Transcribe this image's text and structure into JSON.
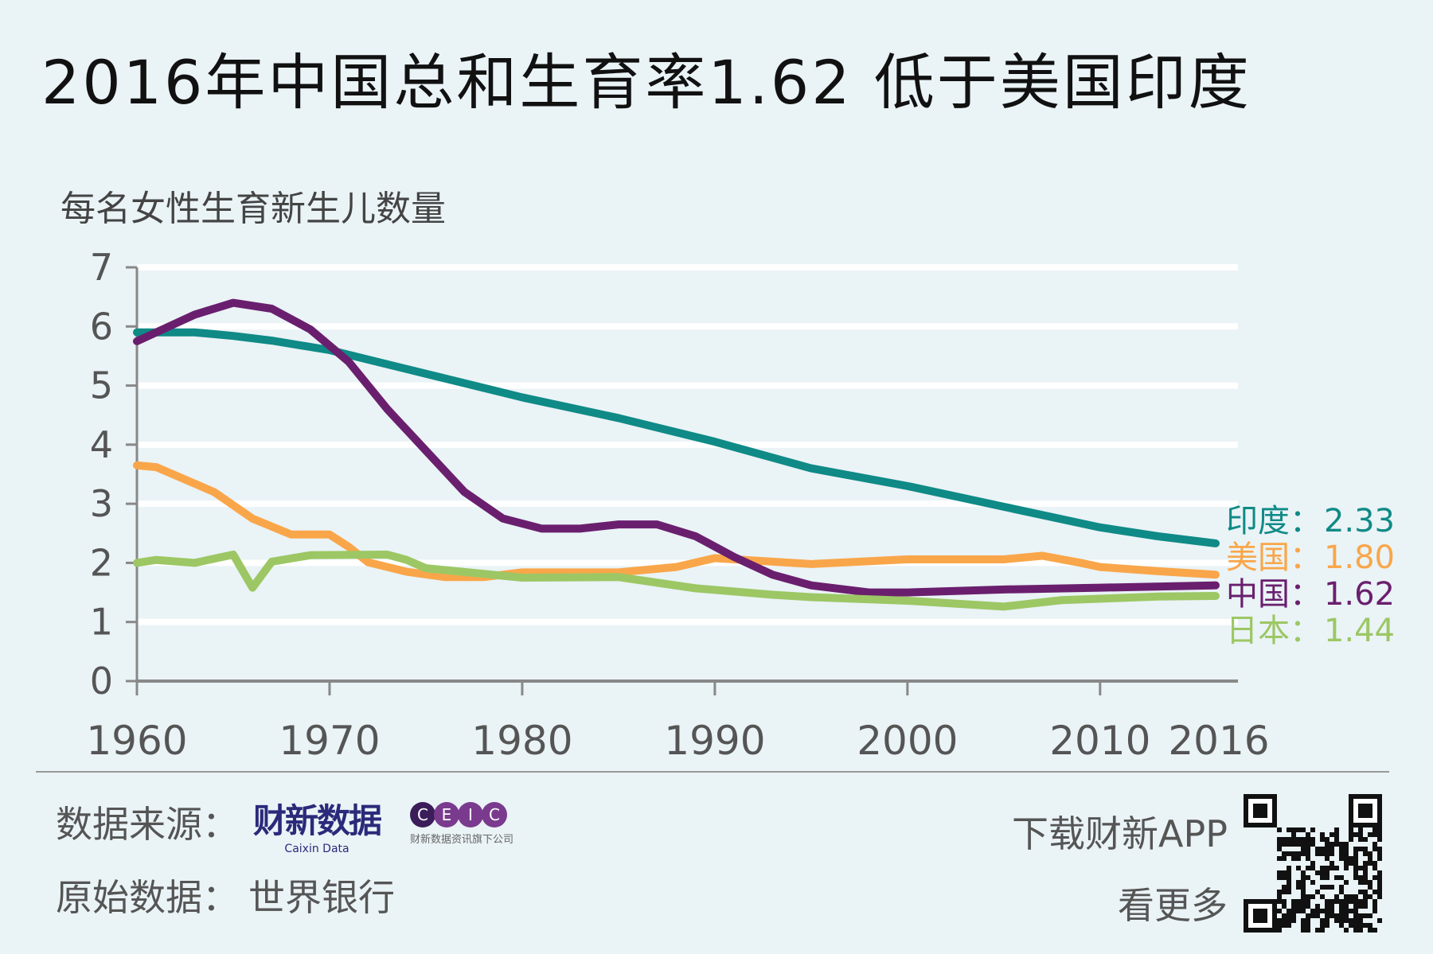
{
  "title": "2016年中国总和生育率1.62 低于美国印度",
  "chart_data": {
    "type": "line",
    "title": "2016年中国总和生育率1.62 低于美国印度",
    "ylabel": "每名女性生育新生儿数量",
    "xlabel": "",
    "xlim": [
      1960,
      2016
    ],
    "ylim": [
      0,
      7
    ],
    "yticks": [
      0,
      1,
      2,
      3,
      4,
      5,
      6,
      7
    ],
    "xticks": [
      1960,
      1970,
      1980,
      1990,
      2000,
      2010,
      2016
    ],
    "grid": true,
    "series": [
      {
        "name": "印度",
        "color": "#0f8a86",
        "end_label": "印度：",
        "end_value": "2.33",
        "x": [
          1960,
          1963,
          1965,
          1967,
          1970,
          1975,
          1980,
          1985,
          1990,
          1995,
          2000,
          2005,
          2010,
          2013,
          2016
        ],
        "y": [
          5.9,
          5.9,
          5.84,
          5.76,
          5.6,
          5.2,
          4.8,
          4.45,
          4.05,
          3.6,
          3.3,
          2.95,
          2.6,
          2.45,
          2.33
        ]
      },
      {
        "name": "美国",
        "color": "#f9a64a",
        "end_label": "美国：",
        "end_value": "1.80",
        "x": [
          1960,
          1961,
          1964,
          1966,
          1968,
          1970,
          1971,
          1972,
          1974,
          1976,
          1978,
          1980,
          1985,
          1988,
          1990,
          1995,
          2000,
          2005,
          2007,
          2009,
          2010,
          2013,
          2016
        ],
        "y": [
          3.65,
          3.62,
          3.2,
          2.75,
          2.48,
          2.48,
          2.27,
          2.01,
          1.85,
          1.76,
          1.76,
          1.84,
          1.84,
          1.93,
          2.08,
          1.98,
          2.06,
          2.06,
          2.12,
          2.0,
          1.93,
          1.86,
          1.8
        ]
      },
      {
        "name": "中国",
        "color": "#6a1f6e",
        "end_label": "中国：",
        "end_value": "1.62",
        "x": [
          1960,
          1963,
          1965,
          1967,
          1969,
          1971,
          1973,
          1975,
          1977,
          1979,
          1981,
          1983,
          1985,
          1987,
          1989,
          1991,
          1993,
          1995,
          1998,
          2000,
          2005,
          2010,
          2016
        ],
        "y": [
          5.75,
          6.2,
          6.4,
          6.3,
          5.95,
          5.4,
          4.6,
          3.9,
          3.2,
          2.75,
          2.58,
          2.58,
          2.65,
          2.65,
          2.45,
          2.1,
          1.8,
          1.62,
          1.5,
          1.5,
          1.55,
          1.58,
          1.62
        ]
      },
      {
        "name": "日本",
        "color": "#9cc764",
        "end_label": "日本：",
        "end_value": "1.44",
        "x": [
          1960,
          1961,
          1963,
          1965,
          1966,
          1967,
          1969,
          1973,
          1974,
          1975,
          1980,
          1985,
          1989,
          1993,
          1995,
          2000,
          2005,
          2008,
          2013,
          2016
        ],
        "y": [
          2.0,
          2.05,
          2.0,
          2.14,
          1.58,
          2.02,
          2.13,
          2.14,
          2.05,
          1.91,
          1.75,
          1.76,
          1.57,
          1.46,
          1.42,
          1.36,
          1.26,
          1.37,
          1.43,
          1.44
        ]
      }
    ]
  },
  "footer": {
    "source_label": "数据来源：",
    "caixin_logo": "财新数据",
    "caixin_sub": "Caixin Data",
    "ceic_letters": [
      "C",
      "E",
      "I",
      "C"
    ],
    "ceic_sub": "财新数据资讯旗下公司",
    "original_label": "原始数据：",
    "original_value": "世界银行",
    "app_line1": "下载财新APP",
    "app_line2": "看更多"
  }
}
